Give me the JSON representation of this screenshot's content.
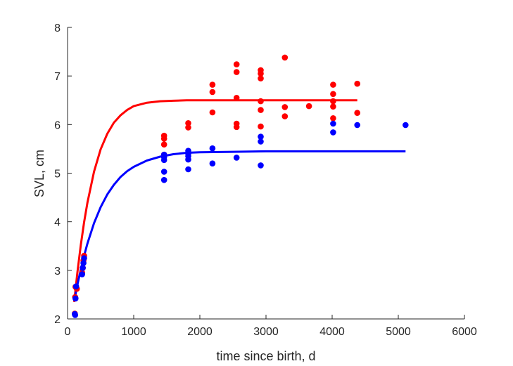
{
  "chart_data": {
    "type": "scatter",
    "title": "",
    "xlabel": "time since birth, d",
    "ylabel": "SVL, cm",
    "xlim": [
      0,
      6000
    ],
    "ylim": [
      2,
      8
    ],
    "xticks": [
      0,
      1000,
      2000,
      3000,
      4000,
      5000,
      6000
    ],
    "yticks": [
      2,
      3,
      4,
      5,
      6,
      7,
      8
    ],
    "grid": false,
    "legend": "none",
    "box": false,
    "series": [
      {
        "color": "#ff0000",
        "kind": "points",
        "points": [
          [
            110,
            2.11
          ],
          [
            115,
            2.45
          ],
          [
            120,
            2.66
          ],
          [
            140,
            2.62
          ],
          [
            220,
            2.95
          ],
          [
            230,
            3.05
          ],
          [
            240,
            3.2
          ],
          [
            250,
            3.3
          ],
          [
            1460,
            5.77
          ],
          [
            1460,
            5.71
          ],
          [
            1460,
            5.59
          ],
          [
            1460,
            5.38
          ],
          [
            1825,
            6.03
          ],
          [
            1825,
            5.94
          ],
          [
            2190,
            6.82
          ],
          [
            2190,
            6.67
          ],
          [
            2190,
            6.25
          ],
          [
            2555,
            7.24
          ],
          [
            2555,
            7.08
          ],
          [
            2555,
            6.55
          ],
          [
            2555,
            6.02
          ],
          [
            2555,
            5.95
          ],
          [
            2920,
            7.12
          ],
          [
            2920,
            7.05
          ],
          [
            2920,
            6.95
          ],
          [
            2920,
            6.48
          ],
          [
            2920,
            6.3
          ],
          [
            2920,
            5.96
          ],
          [
            3285,
            7.38
          ],
          [
            3285,
            6.36
          ],
          [
            3285,
            6.17
          ],
          [
            3650,
            6.38
          ],
          [
            4015,
            6.82
          ],
          [
            4015,
            6.63
          ],
          [
            4015,
            6.48
          ],
          [
            4015,
            6.37
          ],
          [
            4015,
            6.13
          ],
          [
            4380,
            6.84
          ],
          [
            4380,
            6.24
          ]
        ]
      },
      {
        "color": "#0000ff",
        "kind": "points",
        "points": [
          [
            110,
            2.1
          ],
          [
            115,
            2.08
          ],
          [
            120,
            2.42
          ],
          [
            130,
            2.67
          ],
          [
            220,
            2.92
          ],
          [
            230,
            3.05
          ],
          [
            240,
            3.15
          ],
          [
            250,
            3.25
          ],
          [
            1460,
            5.38
          ],
          [
            1460,
            5.33
          ],
          [
            1460,
            5.27
          ],
          [
            1460,
            5.03
          ],
          [
            1460,
            4.86
          ],
          [
            1825,
            5.46
          ],
          [
            1825,
            5.4
          ],
          [
            1825,
            5.35
          ],
          [
            1825,
            5.28
          ],
          [
            1825,
            5.08
          ],
          [
            2190,
            5.51
          ],
          [
            2190,
            5.2
          ],
          [
            2555,
            5.32
          ],
          [
            2920,
            5.75
          ],
          [
            2920,
            5.65
          ],
          [
            2920,
            5.16
          ],
          [
            4015,
            6.02
          ],
          [
            4015,
            5.84
          ],
          [
            4380,
            5.99
          ],
          [
            5110,
            5.99
          ]
        ]
      },
      {
        "color": "#ff0000",
        "kind": "curve",
        "x": [
          100,
          150,
          200,
          250,
          300,
          400,
          500,
          600,
          700,
          800,
          900,
          1000,
          1200,
          1400,
          1600,
          1800,
          2000,
          2500,
          3000,
          3500,
          4000,
          4380
        ],
        "y": [
          2.35,
          2.97,
          3.52,
          3.99,
          4.39,
          5.03,
          5.49,
          5.81,
          6.04,
          6.19,
          6.3,
          6.38,
          6.45,
          6.48,
          6.49,
          6.5,
          6.5,
          6.5,
          6.5,
          6.5,
          6.5,
          6.5
        ]
      },
      {
        "color": "#0000ff",
        "kind": "curve",
        "x": [
          100,
          150,
          200,
          250,
          300,
          400,
          500,
          600,
          700,
          800,
          900,
          1000,
          1200,
          1400,
          1600,
          1800,
          2000,
          2500,
          3000,
          3500,
          4000,
          4500,
          5110
        ],
        "y": [
          2.37,
          2.71,
          3.02,
          3.3,
          3.55,
          3.97,
          4.3,
          4.56,
          4.76,
          4.92,
          5.04,
          5.13,
          5.26,
          5.34,
          5.39,
          5.42,
          5.43,
          5.44,
          5.45,
          5.45,
          5.45,
          5.45,
          5.45
        ]
      }
    ]
  }
}
